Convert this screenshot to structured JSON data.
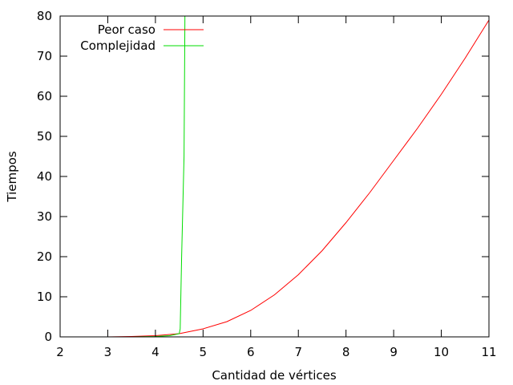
{
  "chart_data": {
    "type": "line",
    "title": "",
    "xlabel": "Cantidad de vértices",
    "ylabel": "Tiempos",
    "xlim": [
      2,
      11
    ],
    "ylim": [
      0,
      80
    ],
    "xticks": [
      2,
      3,
      4,
      5,
      6,
      7,
      8,
      9,
      10,
      11
    ],
    "yticks": [
      0,
      10,
      20,
      30,
      40,
      50,
      60,
      70,
      80
    ],
    "legend_position": "top-left",
    "grid": false,
    "series": [
      {
        "name": "Peor caso",
        "color": "#ff0000",
        "x": [
          3,
          3.5,
          4,
          4.5,
          5,
          5.5,
          6,
          6.5,
          7,
          7.5,
          8,
          8.5,
          9,
          9.5,
          10,
          10.5,
          11
        ],
        "y": [
          0,
          0.1,
          0.3,
          0.8,
          2,
          3.8,
          6.6,
          10.5,
          15.5,
          21.5,
          28.5,
          36,
          44,
          52,
          60.5,
          69.5,
          79
        ]
      },
      {
        "name": "Complejidad",
        "color": "#00dd00",
        "x": [
          3,
          3.5,
          4,
          4.3,
          4.5,
          4.52,
          4.55,
          4.6,
          4.62
        ],
        "y": [
          0,
          0,
          0.1,
          0.3,
          0.8,
          2,
          20,
          45,
          80
        ]
      }
    ]
  }
}
